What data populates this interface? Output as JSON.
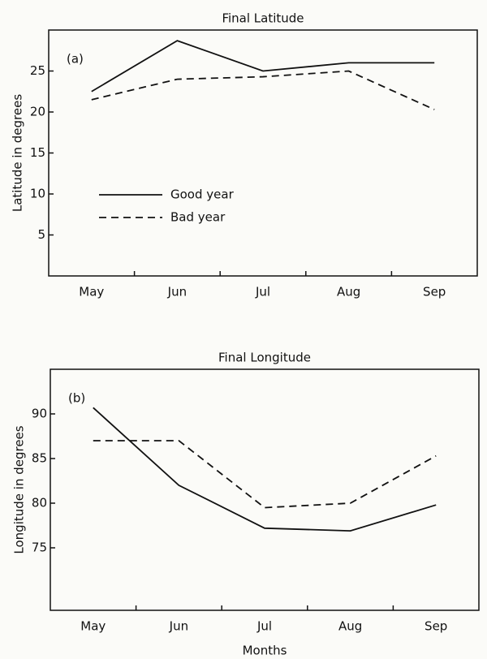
{
  "chart_data": [
    {
      "type": "line",
      "title": "Final Latitude",
      "annotation": "(a)",
      "ylabel": "Latitude in degrees",
      "categories": [
        "May",
        "Jun",
        "Jul",
        "Aug",
        "Sep"
      ],
      "series": [
        {
          "name": "Good year",
          "color": "#111111",
          "dash": false,
          "values": [
            22.5,
            28.7,
            25,
            26,
            26
          ]
        },
        {
          "name": "Bad year",
          "color": "#111111",
          "dash": true,
          "values": [
            21.5,
            24,
            24.3,
            25,
            20.3
          ]
        }
      ],
      "ylim": [
        0,
        30
      ],
      "yticks": [
        5,
        10,
        15,
        20,
        25
      ],
      "legend": "lower-left"
    },
    {
      "type": "line",
      "title": "Final Longitude",
      "annotation": "(b)",
      "ylabel": "Longitude in degrees",
      "xlabel": "Months",
      "categories": [
        "May",
        "Jun",
        "Jul",
        "Aug",
        "Sep"
      ],
      "series": [
        {
          "name": "Good year",
          "color": "#111111",
          "dash": false,
          "values": [
            90.7,
            82,
            77.2,
            76.9,
            79.8
          ]
        },
        {
          "name": "Bad year",
          "color": "#111111",
          "dash": true,
          "values": [
            87,
            87,
            79.5,
            80,
            85.3
          ]
        }
      ],
      "ylim": [
        68,
        95
      ],
      "yticks": [
        75,
        80,
        85,
        90
      ]
    }
  ]
}
